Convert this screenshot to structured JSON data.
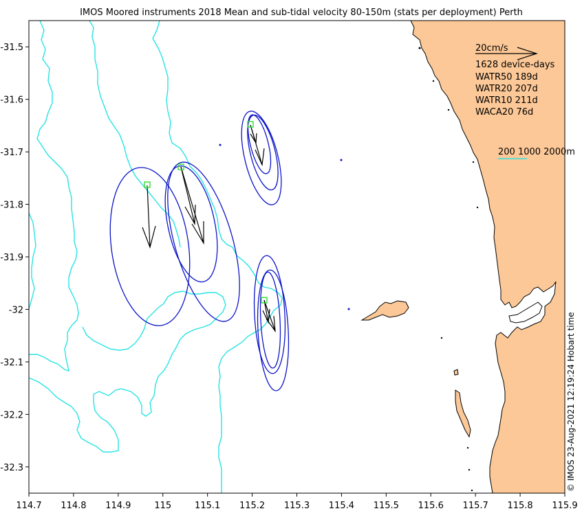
{
  "title": "IMOS Moored instruments 2018 Mean and sub-tidal velocity 80-150m (stats per deployment) Perth",
  "side_note": "© IMOS 23-Aug-2021 12:19:24 Hobart time",
  "x_ticks": [
    "114.7",
    "114.8",
    "114.9",
    "115",
    "115.1",
    "115.2",
    "115.3",
    "115.4",
    "115.5",
    "115.6",
    "115.7",
    "115.8",
    "115.9"
  ],
  "y_ticks": [
    "-31.5",
    "-31.6",
    "-31.7",
    "-31.8",
    "-31.9",
    "-32",
    "-32.1",
    "-32.2",
    "-32.3"
  ],
  "legend": {
    "scale_label": "20cm/s",
    "device_days": "1628 device-days",
    "sites": [
      "WATR50 189d",
      "WATR20 207d",
      "WATR10 211d",
      "WACA20 76d"
    ],
    "isobaths": "200 1000 2000m"
  },
  "colors": {
    "land": "#fcc897",
    "isobath": "#27e3e3",
    "ellipse": "#0a12c8",
    "site": "#33dd33",
    "arrow": "#000000"
  },
  "chart_data": {
    "type": "map",
    "xlim": [
      114.7,
      115.9
    ],
    "ylim": [
      -32.35,
      -31.45
    ],
    "sites": [
      {
        "name": "WATR50",
        "lon": 114.965,
        "lat": -31.765
      },
      {
        "name": "WATR20",
        "lon": 115.043,
        "lat": -31.73
      },
      {
        "name": "WATR10",
        "lon": 115.193,
        "lat": -31.648
      },
      {
        "name": "WACA20",
        "lon": 115.228,
        "lat": -31.985
      }
    ]
  }
}
